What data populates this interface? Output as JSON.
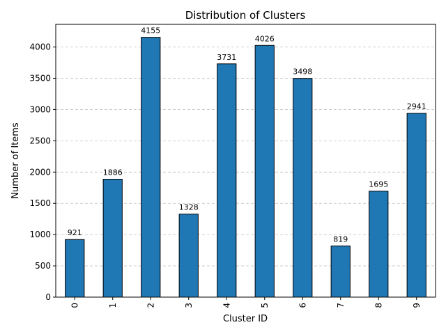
{
  "chart_data": {
    "type": "bar",
    "title": "Distribution of Clusters",
    "xlabel": "Cluster ID",
    "ylabel": "Number of Items",
    "categories": [
      "0",
      "1",
      "2",
      "3",
      "4",
      "5",
      "6",
      "7",
      "8",
      "9"
    ],
    "values": [
      921,
      1886,
      4155,
      1328,
      3731,
      4026,
      3498,
      819,
      1695,
      2941
    ],
    "ylim": [
      0,
      4362.75
    ],
    "yticks": [
      0,
      500,
      1000,
      1500,
      2000,
      2500,
      3000,
      3500,
      4000
    ],
    "grid": "y-dashed",
    "bar_color": "#1f77b4",
    "bar_edge_color": "#000000",
    "grid_color": "#bfbfbf",
    "xtick_rotation": 90
  }
}
